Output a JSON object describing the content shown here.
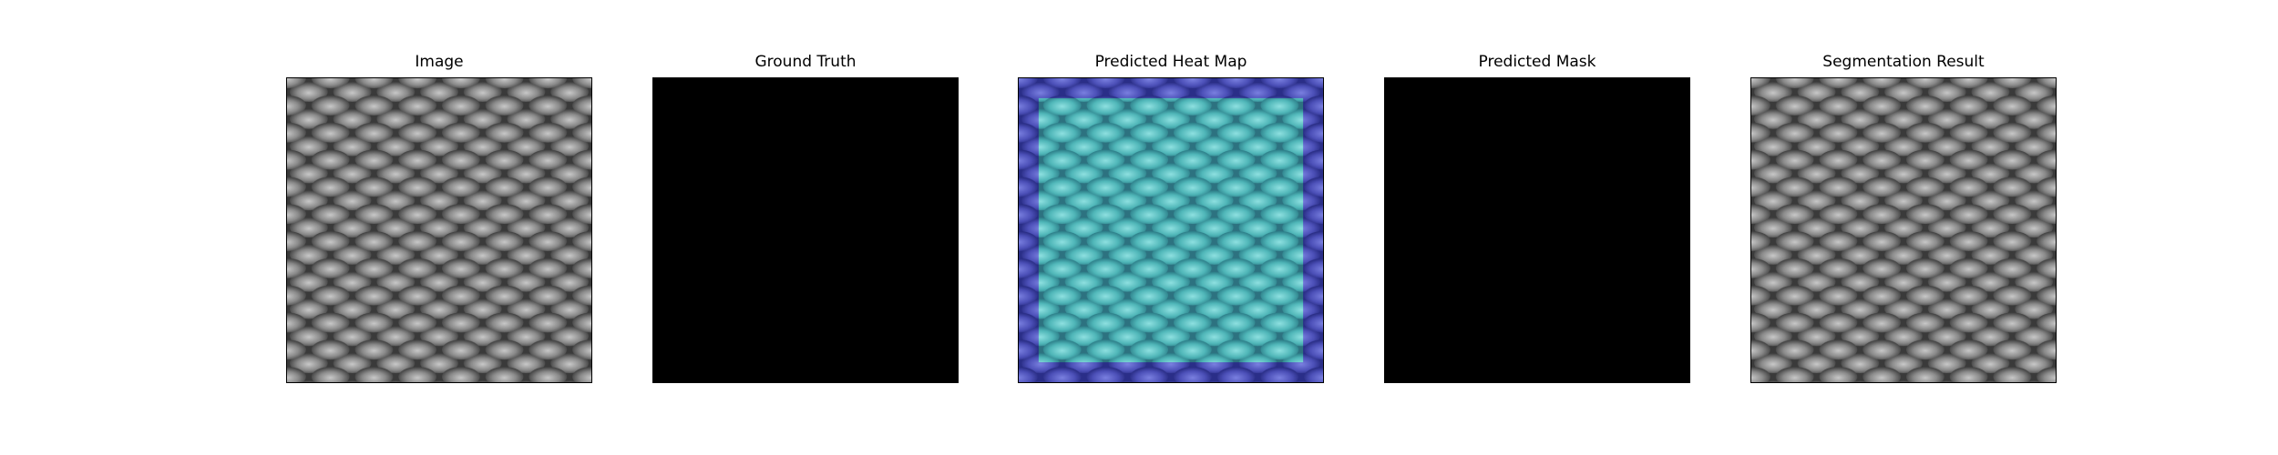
{
  "panels": [
    {
      "title": "Image"
    },
    {
      "title": "Ground Truth"
    },
    {
      "title": "Predicted Heat Map"
    },
    {
      "title": "Predicted Mask"
    },
    {
      "title": "Segmentation Result"
    }
  ],
  "colors": {
    "background": "#ffffff",
    "mask": "#000000",
    "heatmap_low": "#3a3ea8",
    "heatmap_high": "#3fb8b8"
  }
}
